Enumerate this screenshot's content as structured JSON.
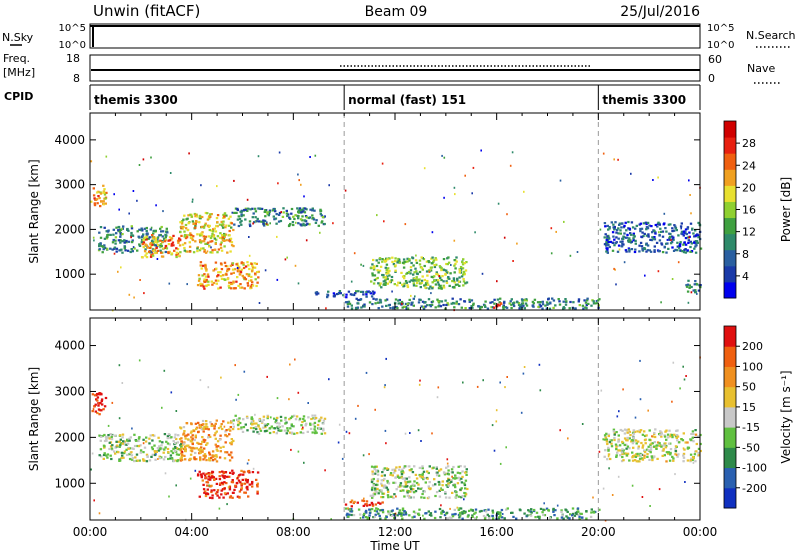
{
  "header": {
    "title_left": "Unwin (fitACF)",
    "title_center": "Beam 09",
    "title_right": "25/Jul/2016"
  },
  "noise_panel": {
    "left_label": "N.Sky",
    "right_label": "N.Search",
    "left_ticks": [
      "10^5",
      "10^0"
    ],
    "right_ticks": [
      "10^5",
      "10^0"
    ]
  },
  "freq_panel": {
    "left_label_top": "Freq.",
    "left_label_units": "[MHz]",
    "right_label": "Nave",
    "left_ticks": [
      "18",
      "8"
    ],
    "right_ticks": [
      "60",
      "0"
    ]
  },
  "cpid": {
    "label": "CPID",
    "segments": [
      {
        "text": "themis 3300",
        "start_hour": 0
      },
      {
        "text": "normal (fast) 151",
        "start_hour": 10
      },
      {
        "text": "themis 3300",
        "start_hour": 20
      }
    ]
  },
  "chart_data": [
    {
      "type": "heatmap",
      "name": "power",
      "ylabel": "Slant Range [km]",
      "yticks": [
        1000,
        2000,
        3000,
        4000
      ],
      "ylim": [
        200,
        4600
      ],
      "xlim": [
        0,
        24
      ],
      "colorbar": {
        "label": "Power [dB]",
        "ticks": [
          "28",
          "24",
          "20",
          "16",
          "12",
          "8",
          "4"
        ],
        "colors": [
          "#0000ee",
          "#1a3aa8",
          "#2a5fa0",
          "#2e8a6a",
          "#3fa040",
          "#8fd030",
          "#e8e030",
          "#f0a020",
          "#f06010",
          "#e82010",
          "#d00000"
        ]
      },
      "regions": [
        {
          "t0": 0.0,
          "t1": 0.6,
          "r0": 2500,
          "r1": 3000,
          "level": 0.7
        },
        {
          "t0": 0.3,
          "t1": 3.0,
          "r0": 1500,
          "r1": 2100,
          "level": 0.3
        },
        {
          "t0": 2.0,
          "t1": 3.6,
          "r0": 1400,
          "r1": 1900,
          "level": 0.7
        },
        {
          "t0": 3.5,
          "t1": 5.6,
          "r0": 1500,
          "r1": 2400,
          "level": 0.6
        },
        {
          "t0": 4.2,
          "t1": 6.6,
          "r0": 700,
          "r1": 1300,
          "level": 0.7
        },
        {
          "t0": 5.6,
          "t1": 9.2,
          "r0": 2100,
          "r1": 2500,
          "level": 0.3
        },
        {
          "t0": 8.6,
          "t1": 11.2,
          "r0": 500,
          "r1": 650,
          "level": 0.2
        },
        {
          "t0": 11.0,
          "t1": 14.8,
          "r0": 700,
          "r1": 1400,
          "level": 0.45
        },
        {
          "t0": 10.0,
          "t1": 20.0,
          "r0": 250,
          "r1": 480,
          "level": 0.3
        },
        {
          "t0": 15.8,
          "t1": 16.3,
          "r0": 250,
          "r1": 380,
          "level": 0.95
        },
        {
          "t0": 20.2,
          "t1": 24.0,
          "r0": 1500,
          "r1": 2200,
          "level": 0.2
        },
        {
          "t0": 23.4,
          "t1": 24.0,
          "r0": 600,
          "r1": 900,
          "level": 0.3
        }
      ]
    },
    {
      "type": "heatmap",
      "name": "velocity",
      "ylabel": "Slant Range [km]",
      "yticks": [
        1000,
        2000,
        3000,
        4000
      ],
      "ylim": [
        200,
        4600
      ],
      "xlim": [
        0,
        24
      ],
      "xticks": [
        "00:00",
        "04:00",
        "08:00",
        "12:00",
        "16:00",
        "20:00",
        "00:00"
      ],
      "xlabel": "Time UT",
      "colorbar": {
        "label": "Velocity [m s⁻¹]",
        "ticks": [
          "200",
          "100",
          "50",
          "15",
          "-15",
          "-50",
          "-100",
          "-200"
        ],
        "colors": [
          "#1030c0",
          "#2a60b0",
          "#2e8a4a",
          "#60c040",
          "#c8c8c8",
          "#e8c030",
          "#f09020",
          "#f06010",
          "#e01010"
        ]
      },
      "regions": [
        {
          "t0": 0.0,
          "t1": 0.6,
          "r0": 2500,
          "r1": 3000,
          "level": 0.95
        },
        {
          "t0": 0.3,
          "t1": 3.6,
          "r0": 1500,
          "r1": 2100,
          "level": 0.45
        },
        {
          "t0": 3.5,
          "t1": 5.6,
          "r0": 1500,
          "r1": 2400,
          "level": 0.7
        },
        {
          "t0": 4.2,
          "t1": 6.6,
          "r0": 700,
          "r1": 1300,
          "level": 0.9
        },
        {
          "t0": 5.6,
          "t1": 9.2,
          "r0": 2100,
          "r1": 2500,
          "level": 0.45
        },
        {
          "t0": 10.0,
          "t1": 11.5,
          "r0": 520,
          "r1": 650,
          "level": 0.9
        },
        {
          "t0": 11.0,
          "t1": 14.8,
          "r0": 700,
          "r1": 1400,
          "level": 0.45
        },
        {
          "t0": 10.0,
          "t1": 20.0,
          "r0": 250,
          "r1": 480,
          "level": 0.3
        },
        {
          "t0": 20.2,
          "t1": 24.0,
          "r0": 1500,
          "r1": 2200,
          "level": 0.5
        }
      ]
    }
  ]
}
